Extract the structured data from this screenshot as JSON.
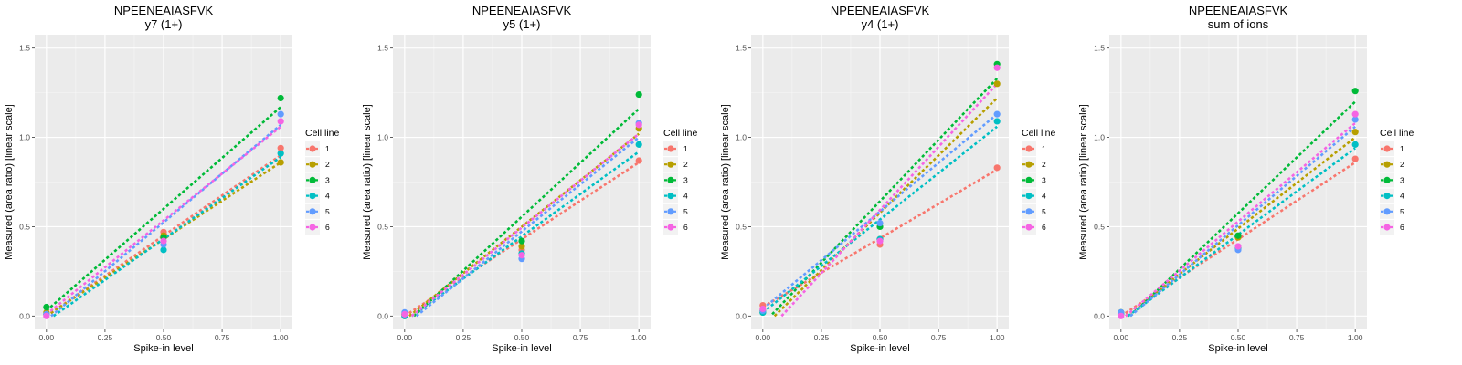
{
  "legend_title": "Cell line",
  "series_colors": {
    "1": "#F8766D",
    "2": "#B79F00",
    "3": "#00BA38",
    "4": "#00BFC4",
    "5": "#619CFF",
    "6": "#F564E3"
  },
  "chart_data": [
    {
      "type": "scatter",
      "title": "NPEENEAIASFVK",
      "subtitle": "y7 (1+)",
      "xlabel": "Spike-in level",
      "ylabel": "Measured (area ratio) [linear scale]",
      "xlim": [
        -0.05,
        1.05
      ],
      "ylim": [
        -0.075,
        1.575
      ],
      "xticks": [
        "0.00",
        "0.25",
        "0.50",
        "0.75",
        "1.00"
      ],
      "yticks": [
        "0.0",
        "0.5",
        "1.0",
        "1.5"
      ],
      "x": [
        0,
        0.5,
        1
      ],
      "series": [
        {
          "name": "1",
          "values": [
            0.01,
            0.47,
            0.94
          ],
          "fit": [
            [
              0.0,
              0.0
            ],
            [
              1.0,
              0.9
            ]
          ]
        },
        {
          "name": "2",
          "values": [
            0.02,
            0.45,
            0.86
          ],
          "fit": [
            [
              0.0,
              0.0
            ],
            [
              1.0,
              0.86
            ]
          ]
        },
        {
          "name": "3",
          "values": [
            0.05,
            0.44,
            1.22
          ],
          "fit": [
            [
              0.0,
              0.03
            ],
            [
              1.0,
              1.17
            ]
          ]
        },
        {
          "name": "4",
          "values": [
            0.01,
            0.37,
            0.91
          ],
          "fit": [
            [
              0.03,
              0.0
            ],
            [
              1.0,
              0.89
            ]
          ]
        },
        {
          "name": "5",
          "values": [
            0.01,
            0.4,
            1.13
          ],
          "fit": [
            [
              0.02,
              0.0
            ],
            [
              1.0,
              1.07
            ]
          ]
        },
        {
          "name": "6",
          "values": [
            0.0,
            0.42,
            1.09
          ],
          "fit": [
            [
              0.0,
              0.01
            ],
            [
              1.0,
              1.06
            ]
          ]
        }
      ]
    },
    {
      "type": "scatter",
      "title": "NPEENEAIASFVK",
      "subtitle": "y5 (1+)",
      "xlabel": "Spike-in level",
      "ylabel": "Measured (area ratio) [linear scale]",
      "xlim": [
        -0.05,
        1.05
      ],
      "ylim": [
        -0.075,
        1.575
      ],
      "xticks": [
        "0.00",
        "0.25",
        "0.50",
        "0.75",
        "1.00"
      ],
      "yticks": [
        "0.0",
        "0.5",
        "1.0",
        "1.5"
      ],
      "x": [
        0,
        0.5,
        1
      ],
      "series": [
        {
          "name": "1",
          "values": [
            0.0,
            0.37,
            0.87
          ],
          "fit": [
            [
              0.0,
              0.0
            ],
            [
              1.0,
              0.86
            ]
          ]
        },
        {
          "name": "2",
          "values": [
            0.01,
            0.39,
            1.05
          ],
          "fit": [
            [
              0.02,
              0.0
            ],
            [
              1.0,
              1.02
            ]
          ]
        },
        {
          "name": "3",
          "values": [
            0.01,
            0.42,
            1.24
          ],
          "fit": [
            [
              0.04,
              0.0
            ],
            [
              1.0,
              1.16
            ]
          ]
        },
        {
          "name": "4",
          "values": [
            0.0,
            0.35,
            0.96
          ],
          "fit": [
            [
              0.03,
              0.0
            ],
            [
              1.0,
              0.92
            ]
          ]
        },
        {
          "name": "5",
          "values": [
            0.02,
            0.32,
            1.08
          ],
          "fit": [
            [
              0.05,
              0.0
            ],
            [
              1.0,
              1.0
            ]
          ]
        },
        {
          "name": "6",
          "values": [
            0.01,
            0.34,
            1.07
          ],
          "fit": [
            [
              0.03,
              0.0
            ],
            [
              1.0,
              1.02
            ]
          ]
        }
      ]
    },
    {
      "type": "scatter",
      "title": "NPEENEAIASFVK",
      "subtitle": "y4 (1+)",
      "xlabel": "Spike-in level",
      "ylabel": "Measured (area ratio) [linear scale]",
      "xlim": [
        -0.05,
        1.05
      ],
      "ylim": [
        -0.075,
        1.575
      ],
      "xticks": [
        "0.00",
        "0.25",
        "0.50",
        "0.75",
        "1.00"
      ],
      "yticks": [
        "0.0",
        "0.5",
        "1.0",
        "1.5"
      ],
      "x": [
        0,
        0.5,
        1
      ],
      "series": [
        {
          "name": "1",
          "values": [
            0.06,
            0.4,
            0.83
          ],
          "fit": [
            [
              0.0,
              0.05
            ],
            [
              1.0,
              0.82
            ]
          ]
        },
        {
          "name": "2",
          "values": [
            0.03,
            0.43,
            1.3
          ],
          "fit": [
            [
              0.05,
              0.0
            ],
            [
              1.0,
              1.22
            ]
          ]
        },
        {
          "name": "3",
          "values": [
            0.02,
            0.5,
            1.41
          ],
          "fit": [
            [
              0.04,
              0.01
            ],
            [
              1.0,
              1.33
            ]
          ]
        },
        {
          "name": "4",
          "values": [
            0.02,
            0.43,
            1.09
          ],
          "fit": [
            [
              0.0,
              0.02
            ],
            [
              1.0,
              1.06
            ]
          ]
        },
        {
          "name": "5",
          "values": [
            0.03,
            0.52,
            1.13
          ],
          "fit": [
            [
              0.0,
              0.04
            ],
            [
              1.0,
              1.13
            ]
          ]
        },
        {
          "name": "6",
          "values": [
            0.04,
            0.42,
            1.39
          ],
          "fit": [
            [
              0.08,
              0.0
            ],
            [
              1.0,
              1.3
            ]
          ]
        }
      ]
    },
    {
      "type": "scatter",
      "title": "NPEENEAIASFVK",
      "subtitle": "sum of ions",
      "xlabel": "Spike-in level",
      "ylabel": "Measured (area ratio) [linear scale]",
      "xlim": [
        -0.05,
        1.05
      ],
      "ylim": [
        -0.075,
        1.575
      ],
      "xticks": [
        "0.00",
        "0.25",
        "0.50",
        "0.75",
        "1.00"
      ],
      "yticks": [
        "0.0",
        "0.5",
        "1.0",
        "1.5"
      ],
      "x": [
        0,
        0.5,
        1
      ],
      "series": [
        {
          "name": "1",
          "values": [
            0.01,
            0.38,
            0.88
          ],
          "fit": [
            [
              0.0,
              0.0
            ],
            [
              1.0,
              0.86
            ]
          ]
        },
        {
          "name": "2",
          "values": [
            0.02,
            0.44,
            1.03
          ],
          "fit": [
            [
              0.02,
              0.0
            ],
            [
              1.0,
              1.0
            ]
          ]
        },
        {
          "name": "3",
          "values": [
            0.02,
            0.45,
            1.26
          ],
          "fit": [
            [
              0.04,
              0.0
            ],
            [
              1.0,
              1.2
            ]
          ]
        },
        {
          "name": "4",
          "values": [
            0.01,
            0.38,
            0.96
          ],
          "fit": [
            [
              0.03,
              0.0
            ],
            [
              1.0,
              0.94
            ]
          ]
        },
        {
          "name": "5",
          "values": [
            0.02,
            0.37,
            1.1
          ],
          "fit": [
            [
              0.04,
              0.0
            ],
            [
              1.0,
              1.06
            ]
          ]
        },
        {
          "name": "6",
          "values": [
            0.0,
            0.39,
            1.13
          ],
          "fit": [
            [
              0.02,
              0.0
            ],
            [
              1.0,
              1.08
            ]
          ]
        }
      ]
    }
  ]
}
